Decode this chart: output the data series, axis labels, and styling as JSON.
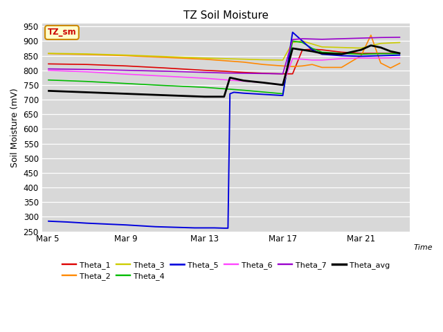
{
  "title": "TZ Soil Moisture",
  "xlabel": "Time",
  "ylabel": "Soil Moisture (mV)",
  "ylim": [
    250,
    960
  ],
  "yticks": [
    250,
    300,
    350,
    400,
    450,
    500,
    550,
    600,
    650,
    700,
    750,
    800,
    850,
    900,
    950
  ],
  "xtick_labels": [
    "Mar 5",
    "Mar 9",
    "Mar 13",
    "Mar 17",
    "Mar 21"
  ],
  "xtick_positions": [
    0,
    4,
    8,
    12,
    16
  ],
  "xlim": [
    -0.3,
    18.5
  ],
  "bg_color": "#d8d8d8",
  "fig_color": "#ffffff",
  "annotation_text": "TZ_sm",
  "annotation_color": "#cc0000",
  "annotation_bg": "#ffffcc",
  "annotation_border": "#cc8800",
  "series": {
    "Theta_1": {
      "color": "#dd0000",
      "lw": 1.2,
      "points": [
        [
          0,
          822
        ],
        [
          2,
          820
        ],
        [
          4,
          815
        ],
        [
          6,
          808
        ],
        [
          8,
          800
        ],
        [
          9,
          797
        ],
        [
          10,
          793
        ],
        [
          11,
          790
        ],
        [
          12,
          788
        ],
        [
          12.5,
          788
        ],
        [
          13,
          870
        ],
        [
          13.5,
          872
        ],
        [
          14,
          870
        ],
        [
          15,
          862
        ],
        [
          16,
          858
        ],
        [
          17,
          858
        ],
        [
          18,
          858
        ]
      ]
    },
    "Theta_2": {
      "color": "#ff8800",
      "lw": 1.2,
      "points": [
        [
          0,
          857
        ],
        [
          2,
          854
        ],
        [
          4,
          850
        ],
        [
          6,
          844
        ],
        [
          8,
          838
        ],
        [
          9,
          833
        ],
        [
          10,
          828
        ],
        [
          11,
          820
        ],
        [
          12,
          815
        ],
        [
          12.5,
          813
        ],
        [
          13,
          815
        ],
        [
          13.5,
          820
        ],
        [
          14,
          810
        ],
        [
          15,
          810
        ],
        [
          16,
          850
        ],
        [
          16.5,
          920
        ],
        [
          17,
          825
        ],
        [
          17.5,
          808
        ],
        [
          18,
          825
        ]
      ]
    },
    "Theta_3": {
      "color": "#cccc00",
      "lw": 1.2,
      "points": [
        [
          0,
          858
        ],
        [
          2,
          856
        ],
        [
          4,
          852
        ],
        [
          6,
          847
        ],
        [
          8,
          842
        ],
        [
          9,
          840
        ],
        [
          10,
          838
        ],
        [
          11,
          836
        ],
        [
          12,
          835
        ],
        [
          12.5,
          895
        ],
        [
          13,
          900
        ],
        [
          13.5,
          890
        ],
        [
          14,
          880
        ],
        [
          15,
          878
        ],
        [
          16,
          876
        ],
        [
          17,
          892
        ],
        [
          18,
          895
        ]
      ]
    },
    "Theta_4": {
      "color": "#00bb00",
      "lw": 1.2,
      "points": [
        [
          0,
          767
        ],
        [
          2,
          762
        ],
        [
          4,
          755
        ],
        [
          6,
          748
        ],
        [
          8,
          742
        ],
        [
          9,
          737
        ],
        [
          10,
          732
        ],
        [
          11,
          726
        ],
        [
          12,
          720
        ],
        [
          12.5,
          900
        ],
        [
          13,
          895
        ],
        [
          13.5,
          875
        ],
        [
          14,
          862
        ],
        [
          15,
          858
        ],
        [
          16,
          855
        ],
        [
          17,
          857
        ],
        [
          18,
          857
        ]
      ]
    },
    "Theta_5": {
      "color": "#0000dd",
      "lw": 1.4,
      "points": [
        [
          0,
          285
        ],
        [
          1,
          282
        ],
        [
          2,
          278
        ],
        [
          3,
          275
        ],
        [
          4,
          272
        ],
        [
          4.5,
          270
        ],
        [
          5,
          268
        ],
        [
          5.5,
          266
        ],
        [
          6,
          265
        ],
        [
          6.5,
          264
        ],
        [
          7,
          263
        ],
        [
          7.5,
          262
        ],
        [
          8,
          262
        ],
        [
          8.5,
          262
        ],
        [
          9,
          261
        ],
        [
          9.2,
          261
        ],
        [
          9.3,
          720
        ],
        [
          9.5,
          725
        ],
        [
          10,
          722
        ],
        [
          11,
          718
        ],
        [
          12,
          714
        ],
        [
          12.5,
          930
        ],
        [
          13,
          900
        ],
        [
          13.5,
          870
        ],
        [
          14,
          855
        ],
        [
          15,
          850
        ],
        [
          16,
          848
        ],
        [
          17,
          850
        ],
        [
          18,
          852
        ]
      ]
    },
    "Theta_6": {
      "color": "#ff44ff",
      "lw": 1.2,
      "points": [
        [
          0,
          800
        ],
        [
          2,
          795
        ],
        [
          4,
          787
        ],
        [
          6,
          780
        ],
        [
          8,
          773
        ],
        [
          9,
          768
        ],
        [
          10,
          763
        ],
        [
          11,
          758
        ],
        [
          12,
          750
        ],
        [
          12.5,
          840
        ],
        [
          13,
          838
        ],
        [
          13.5,
          835
        ],
        [
          14,
          835
        ],
        [
          15,
          840
        ],
        [
          16,
          842
        ],
        [
          17,
          842
        ],
        [
          18,
          843
        ]
      ]
    },
    "Theta_7": {
      "color": "#9900cc",
      "lw": 1.2,
      "points": [
        [
          0,
          805
        ],
        [
          2,
          803
        ],
        [
          4,
          800
        ],
        [
          6,
          797
        ],
        [
          8,
          793
        ],
        [
          9,
          791
        ],
        [
          10,
          790
        ],
        [
          11,
          789
        ],
        [
          12,
          788
        ],
        [
          12.5,
          905
        ],
        [
          13,
          908
        ],
        [
          13.5,
          907
        ],
        [
          14,
          906
        ],
        [
          15,
          908
        ],
        [
          16,
          910
        ],
        [
          17,
          912
        ],
        [
          18,
          913
        ]
      ]
    },
    "Theta_avg": {
      "color": "#000000",
      "lw": 2.0,
      "points": [
        [
          0,
          730
        ],
        [
          2,
          725
        ],
        [
          4,
          720
        ],
        [
          6,
          715
        ],
        [
          8,
          710
        ],
        [
          9,
          710
        ],
        [
          9.3,
          775
        ],
        [
          10,
          765
        ],
        [
          11,
          758
        ],
        [
          12,
          750
        ],
        [
          12.5,
          875
        ],
        [
          13,
          870
        ],
        [
          13.5,
          865
        ],
        [
          14,
          858
        ],
        [
          15,
          855
        ],
        [
          16,
          870
        ],
        [
          16.5,
          885
        ],
        [
          17,
          878
        ],
        [
          17.5,
          865
        ],
        [
          18,
          858
        ]
      ]
    }
  },
  "legend_order": [
    "Theta_1",
    "Theta_2",
    "Theta_3",
    "Theta_4",
    "Theta_5",
    "Theta_6",
    "Theta_7",
    "Theta_avg"
  ]
}
